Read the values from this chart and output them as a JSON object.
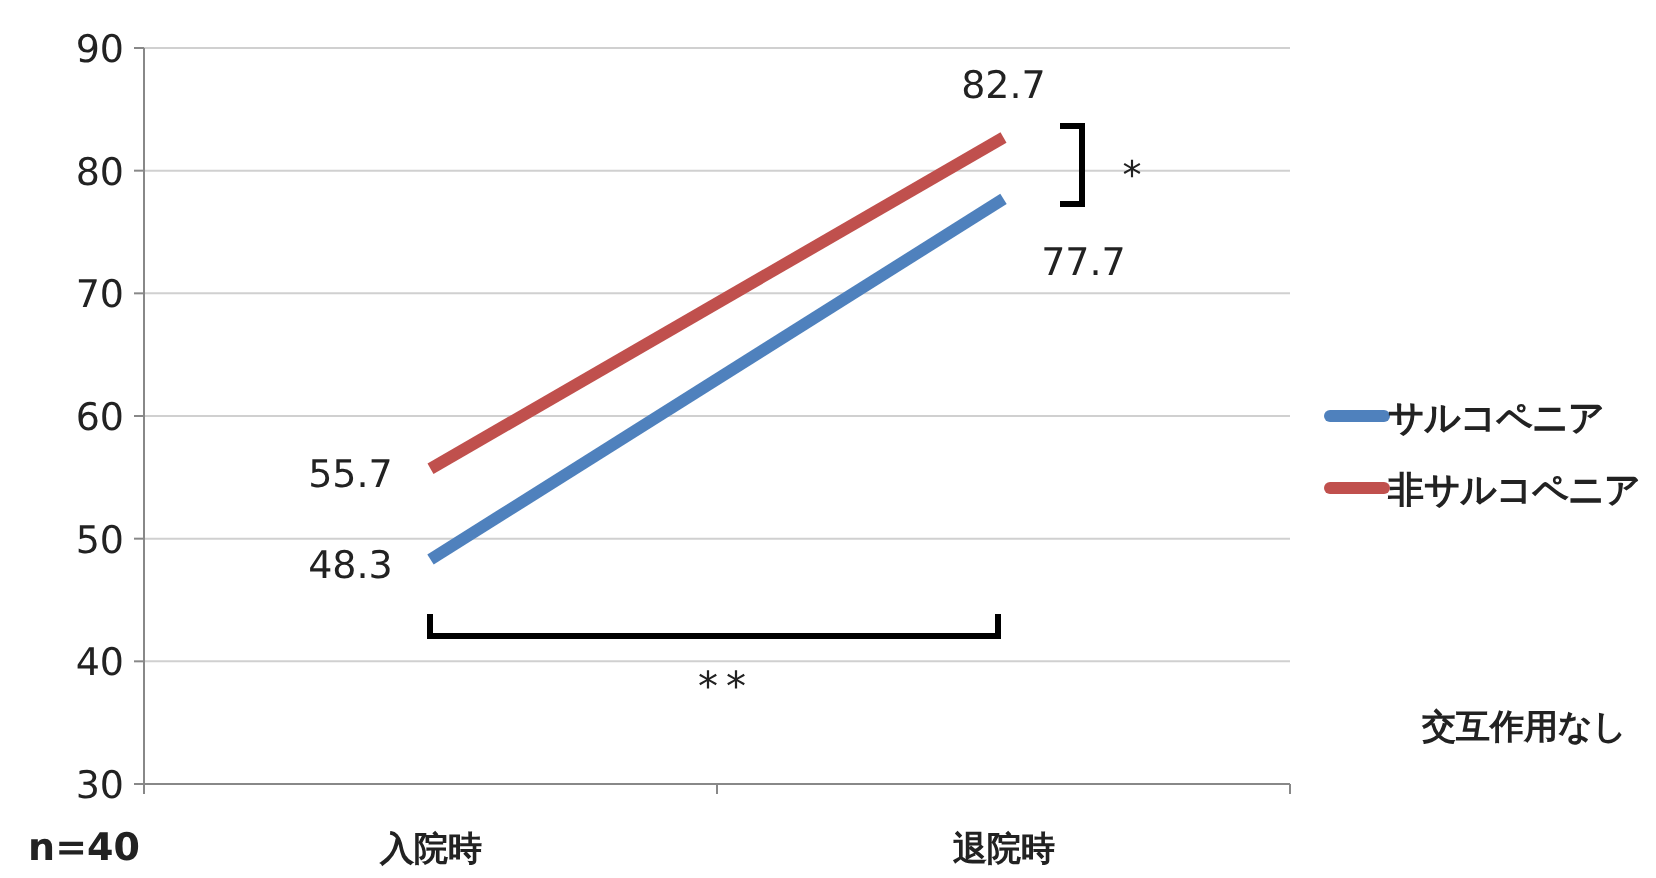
{
  "chart_data": {
    "type": "line",
    "categories": [
      "入院時",
      "退院時"
    ],
    "series": [
      {
        "name": "サルコペニア",
        "color": "#4f81bd",
        "values": [
          48.3,
          77.7
        ]
      },
      {
        "name": "非サルコペニア",
        "color": "#c0504d",
        "values": [
          55.7,
          82.7
        ]
      }
    ],
    "ylim": [
      30,
      90
    ],
    "yticks": [
      30,
      40,
      50,
      60,
      70,
      80,
      90
    ],
    "grid": "y",
    "legend": "right",
    "data_labels": true,
    "marker": "none",
    "line_style": "solid",
    "annotations": [
      "*",
      "**",
      "交互作用なし",
      "n=40"
    ]
  }
}
